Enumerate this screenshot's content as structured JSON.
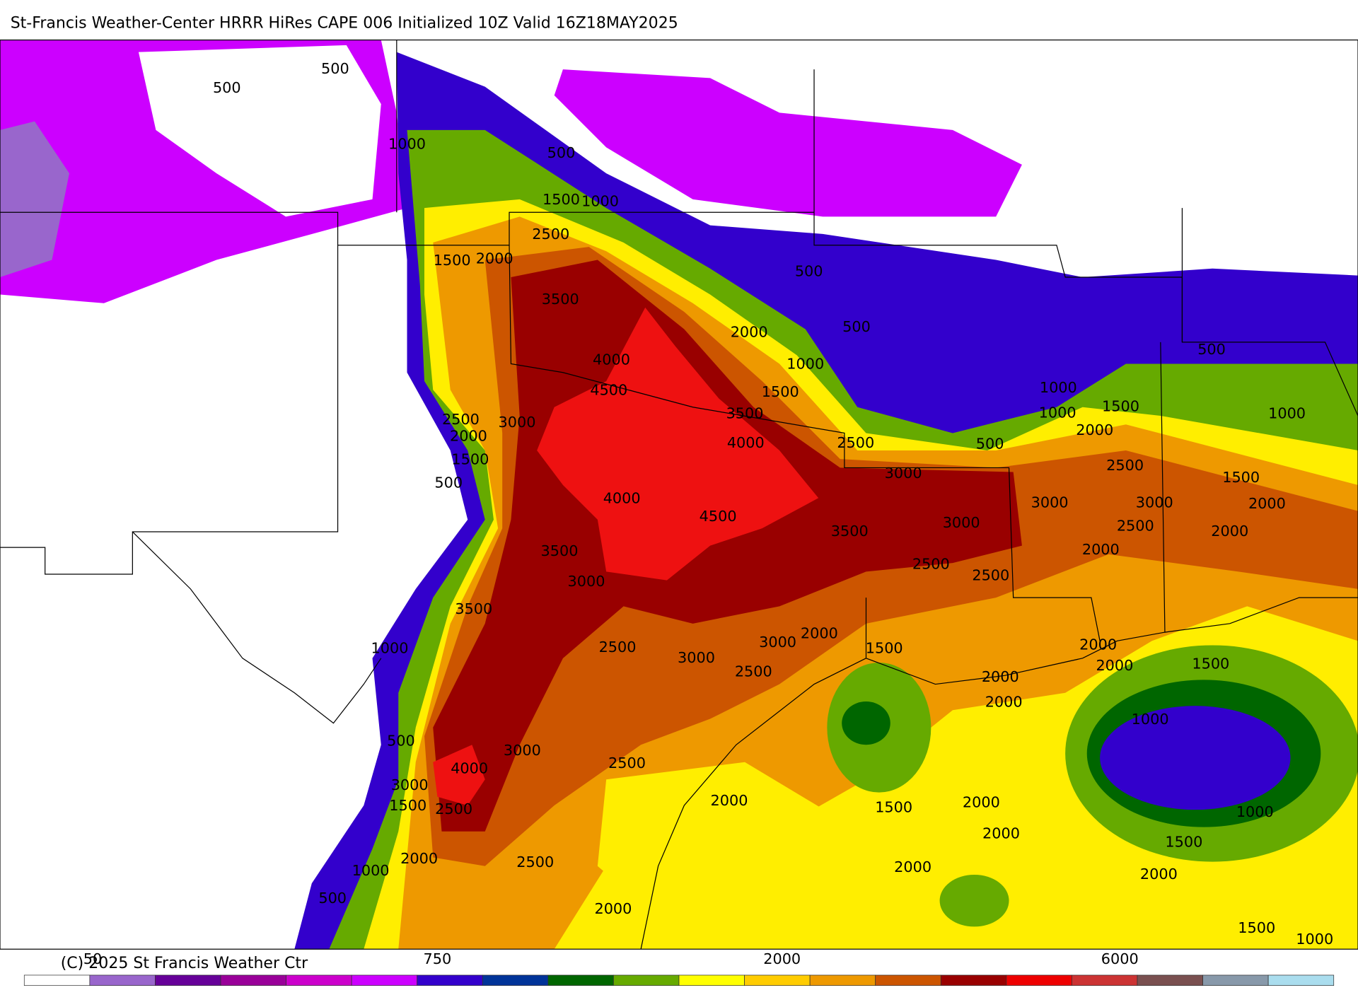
{
  "header": {
    "title": "St-Francis Weather-Center HRRR HiRes CAPE  006 Initialized  10Z Valid 16Z18MAY2025"
  },
  "footer": {
    "copyright": "(C) 2025 St Francis Weather Ctr"
  },
  "colorbar": {
    "labels": [
      "50",
      "750",
      "2000",
      "6000"
    ]
  },
  "contour_labels": [
    "500",
    "500",
    "1000",
    "500",
    "1500",
    "1000",
    "2500",
    "1500",
    "2000",
    "3500",
    "500",
    "500",
    "2000",
    "4000",
    "1000",
    "4500",
    "1500",
    "3500",
    "2500",
    "3000",
    "2000",
    "4000",
    "2500",
    "500",
    "1500",
    "3000",
    "500",
    "4000",
    "4500",
    "3500",
    "3500",
    "3000",
    "3500",
    "2500",
    "3000",
    "2000",
    "1000",
    "3000",
    "2500",
    "1500",
    "2500",
    "2500",
    "3000",
    "3000",
    "1000",
    "1000",
    "2000",
    "1500",
    "500",
    "1000",
    "2500",
    "1500",
    "3000",
    "2000",
    "2500",
    "2000",
    "2000",
    "2000",
    "2000",
    "1500",
    "2000",
    "2000",
    "1000",
    "500",
    "3000",
    "4000",
    "2500",
    "3000",
    "1500",
    "2500",
    "2000",
    "1500",
    "2000",
    "1000",
    "2000",
    "1500",
    "2000",
    "2500",
    "1000",
    "2000",
    "2000",
    "500",
    "2000",
    "1500",
    "1000"
  ]
}
